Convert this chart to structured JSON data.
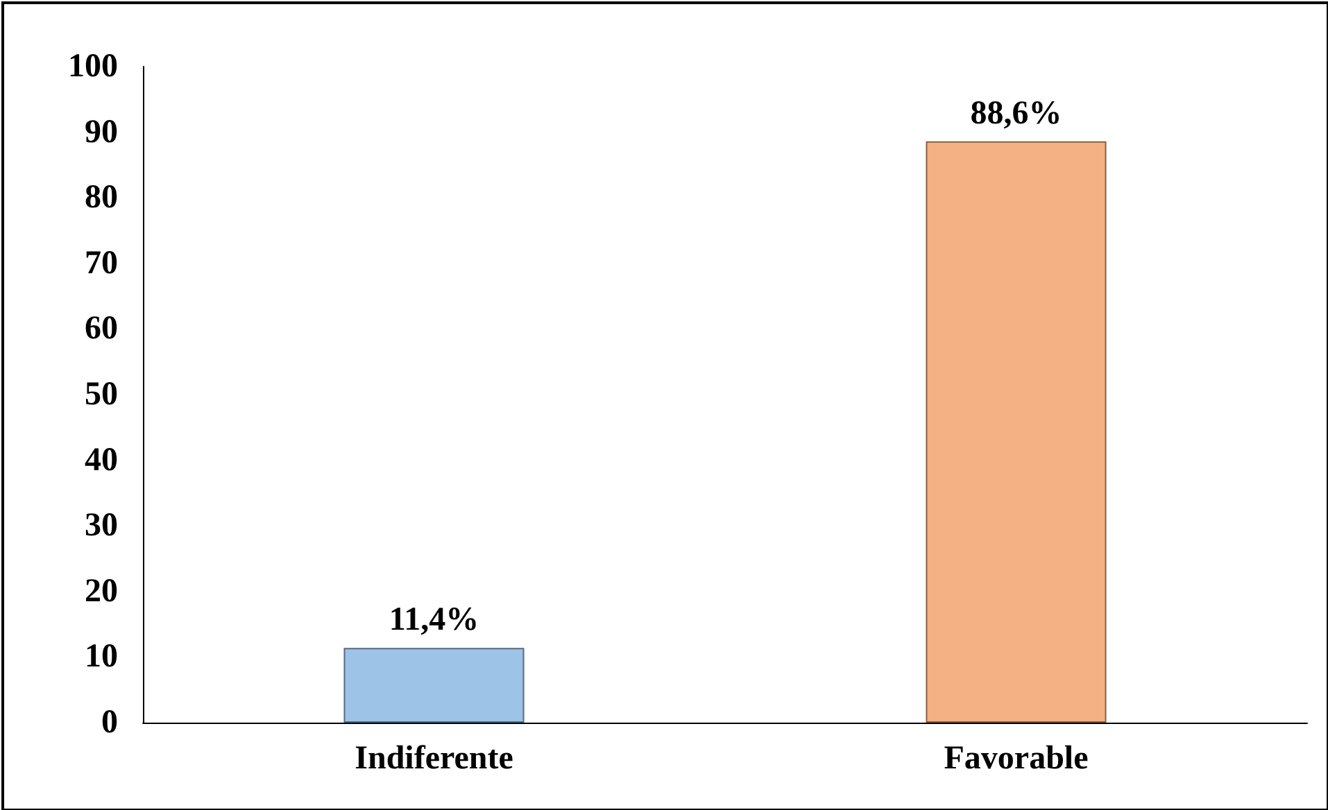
{
  "chart_data": {
    "type": "bar",
    "categories": [
      "Indiferente",
      "Favorable"
    ],
    "values": [
      11.4,
      88.6
    ],
    "colors": [
      "#9dc3e6",
      "#f4b183"
    ],
    "value_labels": [
      "11,4%",
      "88,6%"
    ],
    "ylim": [
      0,
      100
    ],
    "yticks": [
      0,
      10,
      20,
      30,
      40,
      50,
      60,
      70,
      80,
      90,
      100
    ],
    "grid": false
  }
}
